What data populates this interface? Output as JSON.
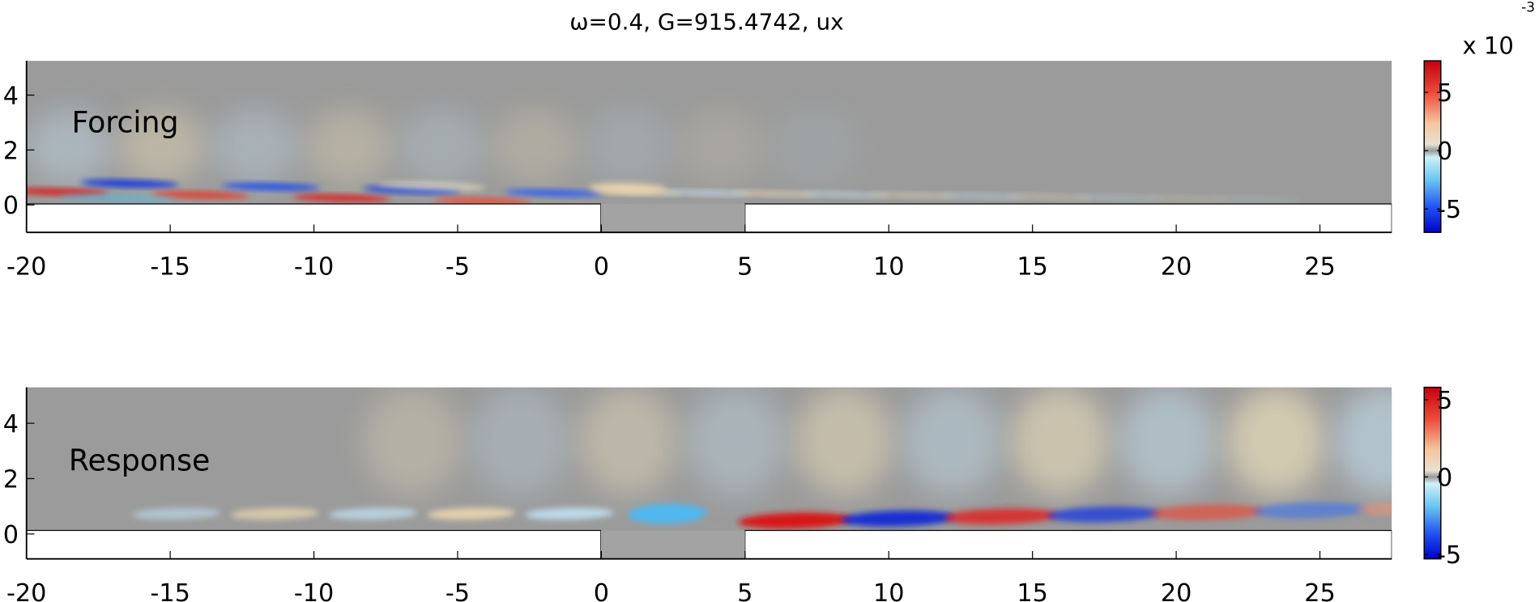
{
  "chart_data": [
    {
      "type": "heatmap",
      "title": "ω=0.4, G=915.4742, ux",
      "annotation": "Forcing",
      "xlim": [
        -20,
        27.5
      ],
      "xticks": [
        -20,
        -15,
        -10,
        -5,
        0,
        5,
        10,
        15,
        20,
        25
      ],
      "ylim": [
        -1,
        5.25
      ],
      "yticks": [
        0,
        2,
        4
      ],
      "colorbar": {
        "lim": [
          -7,
          7.7
        ],
        "ticks": [
          -5,
          0,
          5
        ],
        "scale_label": "x 10",
        "exponent": "-3"
      }
    },
    {
      "type": "heatmap",
      "annotation": "Response",
      "xlim": [
        -20,
        27.5
      ],
      "xticks": [
        -20,
        -15,
        -10,
        -5,
        0,
        5,
        10,
        15,
        20,
        25
      ],
      "ylim": [
        -0.9,
        5.3
      ],
      "yticks": [
        0,
        2,
        4
      ],
      "colorbar": {
        "lim": [
          -5.3,
          5.8
        ],
        "ticks": [
          -5,
          0,
          5
        ]
      }
    }
  ]
}
